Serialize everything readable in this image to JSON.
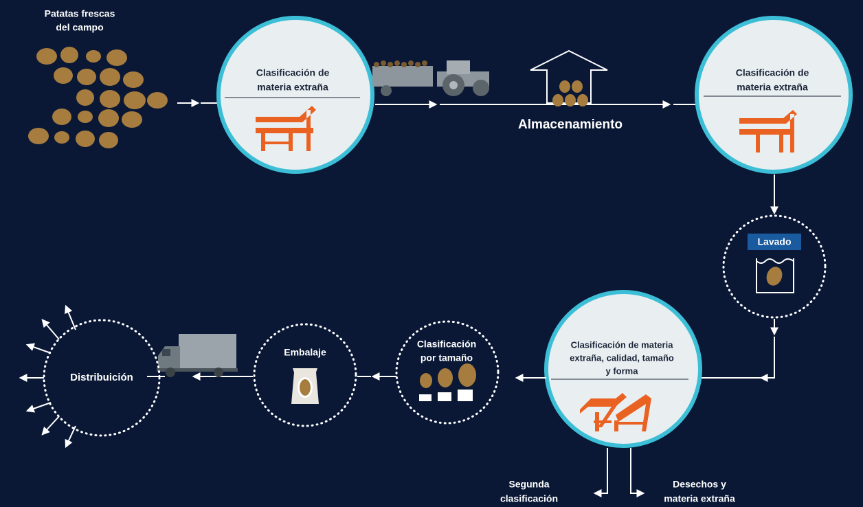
{
  "harvest": {
    "lines": [
      "Patatas frescas",
      "del campo"
    ]
  },
  "sorting_1": {
    "lines": [
      "Clasificación de",
      "materia extraña"
    ]
  },
  "storage": {
    "label": "Almacenamiento"
  },
  "sorting_2": {
    "lines": [
      "Clasificación de",
      "materia extraña"
    ]
  },
  "washing": {
    "label": "Lavado"
  },
  "sorting_3": {
    "lines": [
      "Clasificación de materia",
      "extraña, calidad, tamaño",
      "y forma"
    ]
  },
  "outputs": {
    "second": [
      "Segunda",
      "clasificación"
    ],
    "waste": [
      "Desechos y",
      "materia extraña"
    ]
  },
  "size_grading": {
    "lines": [
      "Clasificación",
      "por tamaño"
    ]
  },
  "packing": {
    "label": "Embalaje"
  },
  "distribution": {
    "label": "Distribuición"
  }
}
